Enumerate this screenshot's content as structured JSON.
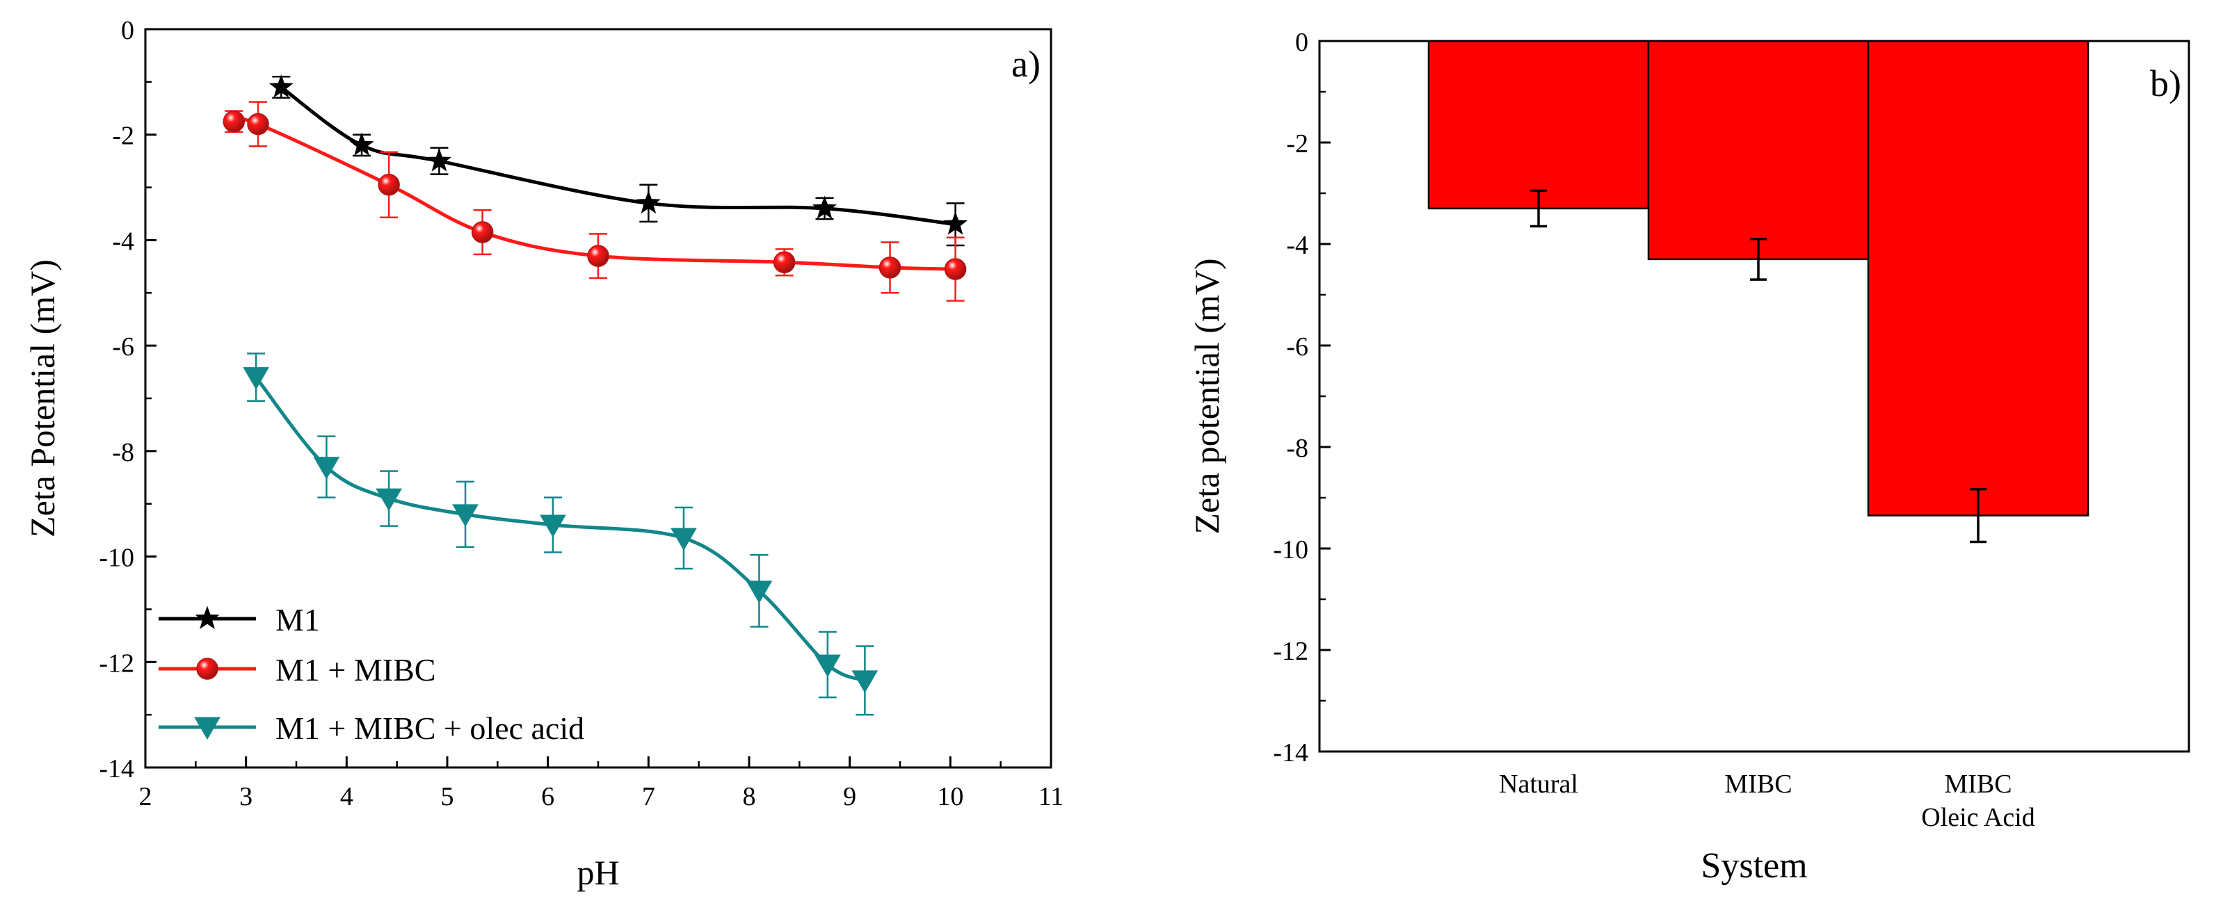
{
  "chart_data": [
    {
      "type": "line",
      "panel_label": "a)",
      "xlabel": "pH",
      "ylabel": "Zeta Potential (mV)",
      "xlim": [
        2,
        11
      ],
      "ylim": [
        -14,
        0
      ],
      "xticks": [
        "2",
        "3",
        "4",
        "5",
        "6",
        "7",
        "8",
        "9",
        "10",
        "11"
      ],
      "yticks": [
        "0",
        "-2",
        "-4",
        "-6",
        "-8",
        "-10",
        "-12",
        "-14"
      ],
      "grid": false,
      "legend_position": "bottom-left",
      "series": [
        {
          "name": "M1",
          "color": "#000000",
          "marker": "star",
          "x": [
            3.35,
            4.15,
            4.92,
            7.0,
            8.75,
            10.05
          ],
          "y": [
            -1.1,
            -2.2,
            -2.5,
            -3.3,
            -3.4,
            -3.7
          ],
          "error": [
            0.2,
            0.2,
            0.25,
            0.35,
            0.2,
            0.4
          ]
        },
        {
          "name": "M1 + MIBC",
          "color": "#ff1a1a",
          "marker": "sphere",
          "x": [
            2.88,
            3.12,
            4.42,
            5.35,
            6.5,
            8.35,
            9.4,
            10.05
          ],
          "y": [
            -1.75,
            -1.8,
            -2.95,
            -3.85,
            -4.3,
            -4.42,
            -4.52,
            -4.55
          ],
          "error": [
            0.2,
            0.42,
            0.62,
            0.42,
            0.42,
            0.25,
            0.48,
            0.6
          ]
        },
        {
          "name": "M1 + MIBC + olec acid",
          "color": "#12878a",
          "marker": "triangle-down",
          "x": [
            3.1,
            3.8,
            4.42,
            5.18,
            6.05,
            7.35,
            8.1,
            8.78,
            9.15
          ],
          "y": [
            -6.6,
            -8.3,
            -8.9,
            -9.2,
            -9.4,
            -9.65,
            -10.65,
            -12.05,
            -12.35
          ],
          "error": [
            0.45,
            0.58,
            0.52,
            0.62,
            0.52,
            0.58,
            0.68,
            0.62,
            0.65
          ]
        }
      ]
    },
    {
      "type": "bar",
      "panel_label": "b)",
      "xlabel": "System",
      "ylabel": "Zeta potential (mV)",
      "ylim": [
        -14,
        0
      ],
      "yticks": [
        "0",
        "-2",
        "-4",
        "-6",
        "-8",
        "-10",
        "-12",
        "-14"
      ],
      "grid": false,
      "bar_color": "#ff0000",
      "categories": [
        [
          "Natural"
        ],
        [
          "MIBC"
        ],
        [
          "MIBC",
          "Oleic Acid"
        ]
      ],
      "values": [
        -3.3,
        -4.3,
        -9.35
      ],
      "error": [
        0.35,
        0.4,
        0.52
      ]
    }
  ]
}
